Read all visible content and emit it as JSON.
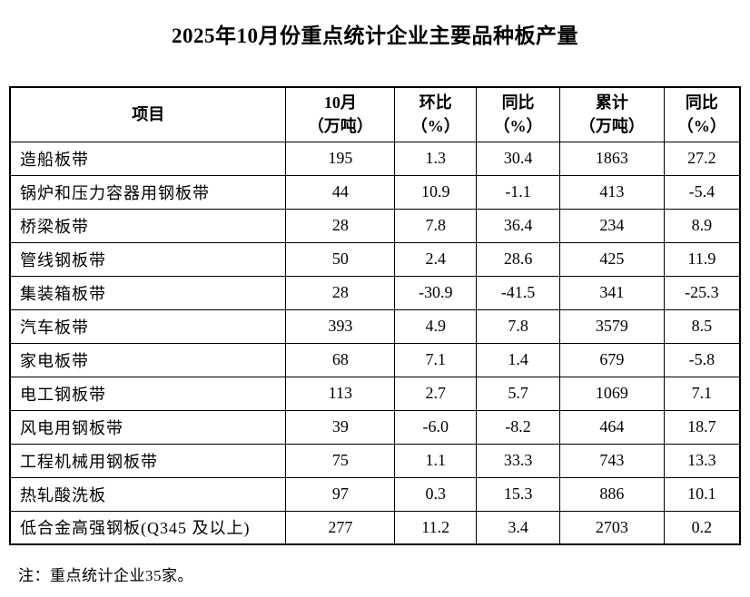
{
  "page": {
    "title": "2025年10月份重点统计企业主要品种板产量",
    "note": "注：重点统计企业35家。"
  },
  "table": {
    "headers": [
      {
        "top": "项目",
        "bottom": ""
      },
      {
        "top": "10月",
        "bottom": "（万吨）"
      },
      {
        "top": "环比",
        "bottom": "（%）"
      },
      {
        "top": "同比",
        "bottom": "（%）"
      },
      {
        "top": "累计",
        "bottom": "（万吨）"
      },
      {
        "top": "同比",
        "bottom": "（%）"
      }
    ],
    "rows": [
      [
        "造船板带",
        "195",
        "1.3",
        "30.4",
        "1863",
        "27.2"
      ],
      [
        "锅炉和压力容器用钢板带",
        "44",
        "10.9",
        "-1.1",
        "413",
        "-5.4"
      ],
      [
        "桥梁板带",
        "28",
        "7.8",
        "36.4",
        "234",
        "8.9"
      ],
      [
        "管线钢板带",
        "50",
        "2.4",
        "28.6",
        "425",
        "11.9"
      ],
      [
        "集装箱板带",
        "28",
        "-30.9",
        "-41.5",
        "341",
        "-25.3"
      ],
      [
        "汽车板带",
        "393",
        "4.9",
        "7.8",
        "3579",
        "8.5"
      ],
      [
        "家电板带",
        "68",
        "7.1",
        "1.4",
        "679",
        "-5.8"
      ],
      [
        "电工钢板带",
        "113",
        "2.7",
        "5.7",
        "1069",
        "7.1"
      ],
      [
        "风电用钢板带",
        "39",
        "-6.0",
        "-8.2",
        "464",
        "18.7"
      ],
      [
        "工程机械用钢板带",
        "75",
        "1.1",
        "33.3",
        "743",
        "13.3"
      ],
      [
        "热轧酸洗板",
        "97",
        "0.3",
        "15.3",
        "886",
        "10.1"
      ],
      [
        "低合金高强钢板(Q345 及以上)",
        "277",
        "11.2",
        "3.4",
        "2703",
        "0.2"
      ]
    ]
  },
  "chart_data": {
    "type": "table",
    "title": "2025年10月份重点统计企业主要品种板产量",
    "columns": [
      "项目",
      "10月（万吨）",
      "环比（%）",
      "同比（%）",
      "累计（万吨）",
      "同比（%）"
    ],
    "rows": [
      [
        "造船板带",
        195,
        1.3,
        30.4,
        1863,
        27.2
      ],
      [
        "锅炉和压力容器用钢板带",
        44,
        10.9,
        -1.1,
        413,
        -5.4
      ],
      [
        "桥梁板带",
        28,
        7.8,
        36.4,
        234,
        8.9
      ],
      [
        "管线钢板带",
        50,
        2.4,
        28.6,
        425,
        11.9
      ],
      [
        "集装箱板带",
        28,
        -30.9,
        -41.5,
        341,
        -25.3
      ],
      [
        "汽车板带",
        393,
        4.9,
        7.8,
        3579,
        8.5
      ],
      [
        "家电板带",
        68,
        7.1,
        1.4,
        679,
        -5.8
      ],
      [
        "电工钢板带",
        113,
        2.7,
        5.7,
        1069,
        7.1
      ],
      [
        "风电用钢板带",
        39,
        -6.0,
        -8.2,
        464,
        18.7
      ],
      [
        "工程机械用钢板带",
        75,
        1.1,
        33.3,
        743,
        13.3
      ],
      [
        "热轧酸洗板",
        97,
        0.3,
        15.3,
        886,
        10.1
      ],
      [
        "低合金高强钢板(Q345 及以上)",
        277,
        11.2,
        3.4,
        2703,
        0.2
      ]
    ],
    "footnote": "注：重点统计企业35家。"
  }
}
